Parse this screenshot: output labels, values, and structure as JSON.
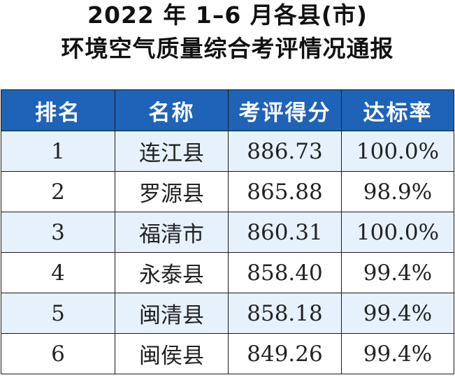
{
  "title_line1": "2022 年 1–6 月各县(市)",
  "title_line2": "环境空气质量综合考评情况通报",
  "table": {
    "headers": [
      "排名",
      "名称",
      "考评得分",
      "达标率"
    ],
    "rows": [
      [
        "1",
        "连江县",
        "886.73",
        "100.0%"
      ],
      [
        "2",
        "罗源县",
        "865.88",
        "98.9%"
      ],
      [
        "3",
        "福清市",
        "860.31",
        "100.0%"
      ],
      [
        "4",
        "永泰县",
        "858.40",
        "99.4%"
      ],
      [
        "5",
        "闽清县",
        "858.18",
        "99.4%"
      ],
      [
        "6",
        "闽侯县",
        "849.26",
        "99.4%"
      ]
    ]
  },
  "colors": {
    "header_bg": "#1f63b8",
    "alt_row_bg": "#e6f1fb"
  }
}
